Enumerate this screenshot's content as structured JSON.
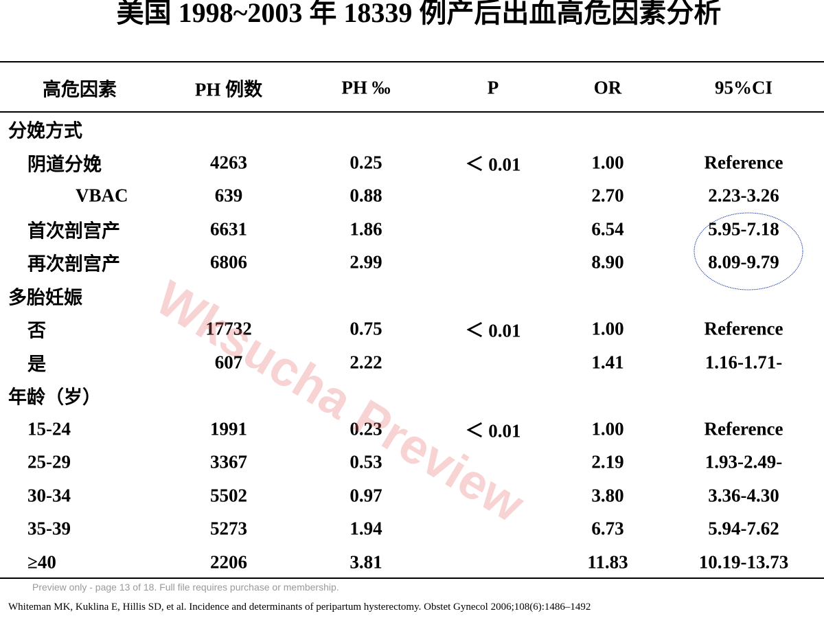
{
  "title": "美国 1998~2003 年 18339 例产后出血高危因素分析",
  "table": {
    "headers": [
      "高危因素",
      "PH 例数",
      "PH ‰",
      "P",
      "OR",
      "95%CI"
    ],
    "groups": [
      {
        "label": "分娩方式",
        "rows": [
          {
            "factor": "阴道分娩",
            "cases": "4263",
            "ph": "0.25",
            "p": "＜ 0.01",
            "or": "1.00",
            "ci": "Reference"
          },
          {
            "factor": "VBAC",
            "cases": "639",
            "ph": "0.88",
            "or": "2.70",
            "ci": "2.23-3.26"
          },
          {
            "factor": "首次剖宫产",
            "cases": "6631",
            "ph": "1.86",
            "or": "6.54",
            "ci": "5.95-7.18"
          },
          {
            "factor": "再次剖宫产",
            "cases": "6806",
            "ph": "2.99",
            "or": "8.90",
            "ci": "8.09-9.79"
          }
        ]
      },
      {
        "label": "多胎妊娠",
        "rows": [
          {
            "factor": "否",
            "cases": "17732",
            "ph": "0.75",
            "p": "＜ 0.01",
            "or": "1.00",
            "ci": "Reference"
          },
          {
            "factor": "是",
            "cases": "607",
            "ph": "2.22",
            "or": "1.41",
            "ci": "1.16-1.71-"
          }
        ]
      },
      {
        "label": "年龄（岁）",
        "rows": [
          {
            "factor": "15-24",
            "cases": "1991",
            "ph": "0.23",
            "p": "＜ 0.01",
            "or": "1.00",
            "ci": "Reference"
          },
          {
            "factor": "25-29",
            "cases": "3367",
            "ph": "0.53",
            "or": "2.19",
            "ci": "1.93-2.49-"
          },
          {
            "factor": "30-34",
            "cases": "5502",
            "ph": "0.97",
            "or": "3.80",
            "ci": "3.36-4.30"
          },
          {
            "factor": "35-39",
            "cases": "5273",
            "ph": "1.94",
            "or": "6.73",
            "ci": "5.94-7.62"
          },
          {
            "factor": "≥40",
            "cases": "2206",
            "ph": "3.81",
            "or": "11.83",
            "ci": "10.19-13.73"
          }
        ]
      }
    ]
  },
  "watermark": "Wksucha Preview",
  "notice": "Preview only - page 13 of 18. Full file requires purchase or membership.",
  "citation": "Whiteman MK, Kuklina E, Hillis SD, et al. Incidence and determinants of peripartum hysterectomy. Obstet Gynecol 2006;108(6):1486–1492"
}
